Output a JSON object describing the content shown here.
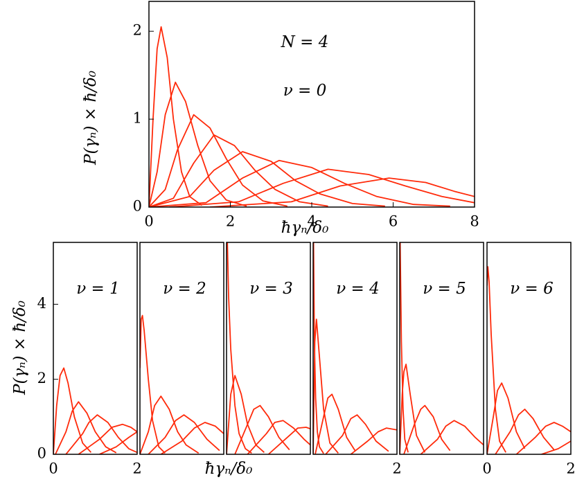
{
  "chart_data": [
    {
      "type": "line",
      "color": "#ff2a0a",
      "annotations": [
        "N = 4",
        "ν = 0"
      ],
      "xlabel": "ħγₙ/δ₀",
      "ylabel": "P(γₙ) × ħ/δ₀",
      "xlim": [
        0,
        8
      ],
      "ylim": [
        0,
        2.34
      ],
      "xticks": [
        0,
        2,
        4,
        6,
        8
      ],
      "yticks": [
        0,
        1,
        2
      ],
      "series": [
        {
          "x": [
            0,
            0.1,
            0.2,
            0.3,
            0.45,
            0.6,
            0.8,
            1.0,
            1.3
          ],
          "values": [
            0,
            1.0,
            1.8,
            2.05,
            1.7,
            1.0,
            0.4,
            0.12,
            0.02
          ]
        },
        {
          "x": [
            0,
            0.2,
            0.4,
            0.65,
            0.9,
            1.2,
            1.5,
            1.9,
            2.4
          ],
          "values": [
            0,
            0.4,
            1.05,
            1.42,
            1.2,
            0.7,
            0.3,
            0.08,
            0.01
          ]
        },
        {
          "x": [
            0,
            0.4,
            0.7,
            1.1,
            1.5,
            1.9,
            2.3,
            2.8,
            3.4
          ],
          "values": [
            0,
            0.2,
            0.65,
            1.05,
            0.9,
            0.55,
            0.25,
            0.07,
            0.01
          ]
        },
        {
          "x": [
            0,
            0.6,
            1.1,
            1.6,
            2.1,
            2.6,
            3.1,
            3.7,
            4.4
          ],
          "values": [
            0,
            0.1,
            0.5,
            0.82,
            0.7,
            0.42,
            0.2,
            0.06,
            0.01
          ]
        },
        {
          "x": [
            0,
            1.0,
            1.6,
            2.3,
            3.0,
            3.6,
            4.2,
            5.0,
            5.8
          ],
          "values": [
            0,
            0.12,
            0.42,
            0.63,
            0.52,
            0.3,
            0.15,
            0.04,
            0.01
          ]
        },
        {
          "x": [
            0,
            1.4,
            2.3,
            3.2,
            4.0,
            4.8,
            5.6,
            6.5,
            7.4
          ],
          "values": [
            0,
            0.05,
            0.33,
            0.53,
            0.45,
            0.27,
            0.12,
            0.03,
            0.01
          ]
        },
        {
          "x": [
            0.5,
            2.2,
            3.3,
            4.4,
            5.4,
            6.3,
            7.2,
            8
          ],
          "values": [
            0,
            0.06,
            0.27,
            0.43,
            0.37,
            0.24,
            0.12,
            0.05
          ]
        },
        {
          "x": [
            1.5,
            3.5,
            4.7,
            5.9,
            6.8,
            7.5,
            8
          ],
          "values": [
            0,
            0.06,
            0.24,
            0.33,
            0.28,
            0.18,
            0.12
          ]
        }
      ]
    },
    {
      "type": "line",
      "color": "#ff2a0a",
      "annotations": [
        "ν = 1"
      ],
      "ylabel": "P(γₙ) × ħ/δ₀",
      "xlim": [
        0,
        2
      ],
      "ylim": [
        0,
        5.65
      ],
      "xticks": [
        0,
        2
      ],
      "yticks": [
        0,
        2,
        4
      ],
      "series": [
        {
          "x": [
            0,
            0.08,
            0.16,
            0.25,
            0.35,
            0.5,
            0.7,
            0.9
          ],
          "values": [
            0,
            1.3,
            2.1,
            2.3,
            1.9,
            1.0,
            0.3,
            0.05
          ]
        },
        {
          "x": [
            0.05,
            0.3,
            0.45,
            0.6,
            0.8,
            1.0,
            1.25,
            1.5
          ],
          "values": [
            0,
            0.6,
            1.15,
            1.4,
            1.1,
            0.6,
            0.2,
            0.04
          ]
        },
        {
          "x": [
            0.3,
            0.7,
            0.85,
            1.05,
            1.3,
            1.55,
            1.8,
            2
          ],
          "values": [
            0,
            0.55,
            0.85,
            1.05,
            0.85,
            0.45,
            0.15,
            0.05
          ]
        },
        {
          "x": [
            0.6,
            1.1,
            1.4,
            1.65,
            1.85,
            2
          ],
          "values": [
            0,
            0.4,
            0.72,
            0.8,
            0.72,
            0.6
          ]
        },
        {
          "x": [
            1.1,
            1.5,
            1.8,
            2
          ],
          "values": [
            0,
            0.2,
            0.45,
            0.6
          ]
        }
      ]
    },
    {
      "type": "line",
      "color": "#ff2a0a",
      "annotations": [
        "ν = 2"
      ],
      "xlabel": "ħγₙ/δ₀",
      "xlim": [
        0,
        2
      ],
      "ylim": [
        0,
        5.65
      ],
      "series": [
        {
          "x": [
            0,
            0.03,
            0.06,
            0.1,
            0.2,
            0.3,
            0.45,
            0.6
          ],
          "values": [
            2.3,
            3.6,
            3.7,
            3.3,
            2.0,
            0.9,
            0.2,
            0.03
          ]
        },
        {
          "x": [
            0,
            0.2,
            0.35,
            0.5,
            0.7,
            0.9,
            1.1,
            1.4
          ],
          "values": [
            0,
            0.6,
            1.3,
            1.55,
            1.2,
            0.6,
            0.25,
            0.03
          ]
        },
        {
          "x": [
            0.2,
            0.6,
            0.85,
            1.05,
            1.3,
            1.6,
            1.9
          ],
          "values": [
            0,
            0.45,
            0.9,
            1.05,
            0.85,
            0.4,
            0.1
          ]
        },
        {
          "x": [
            0.5,
            1.0,
            1.3,
            1.55,
            1.8,
            2
          ],
          "values": [
            0,
            0.35,
            0.7,
            0.85,
            0.75,
            0.55
          ]
        }
      ]
    },
    {
      "type": "line",
      "color": "#ff2a0a",
      "annotations": [
        "ν = 3"
      ],
      "xlim": [
        0,
        2
      ],
      "ylim": [
        0,
        5.65
      ],
      "series": [
        {
          "x": [
            0.02,
            0.05,
            0.1,
            0.2,
            0.3,
            0.45,
            0.6
          ],
          "values": [
            5.65,
            4.2,
            2.8,
            1.3,
            0.55,
            0.15,
            0.03
          ]
        },
        {
          "x": [
            0,
            0.1,
            0.2,
            0.35,
            0.5,
            0.7,
            0.9
          ],
          "values": [
            0,
            1.6,
            2.1,
            1.6,
            0.8,
            0.25,
            0.05
          ]
        },
        {
          "x": [
            0.2,
            0.5,
            0.65,
            0.8,
            1.0,
            1.25,
            1.5
          ],
          "values": [
            0,
            0.8,
            1.2,
            1.3,
            1.0,
            0.45,
            0.12
          ]
        },
        {
          "x": [
            0.5,
            0.95,
            1.15,
            1.35,
            1.6,
            1.85,
            2
          ],
          "values": [
            0,
            0.55,
            0.85,
            0.9,
            0.7,
            0.4,
            0.25
          ]
        },
        {
          "x": [
            1.0,
            1.4,
            1.7,
            1.9,
            2
          ],
          "values": [
            0,
            0.4,
            0.7,
            0.72,
            0.68
          ]
        }
      ]
    },
    {
      "type": "line",
      "color": "#ff2a0a",
      "annotations": [
        "ν = 4"
      ],
      "xlim": [
        0,
        2
      ],
      "ylim": [
        0,
        5.65
      ],
      "xticks": [
        2
      ],
      "series": [
        {
          "x": [
            0.01,
            0.03,
            0.06,
            0.1,
            0.15,
            0.25
          ],
          "values": [
            5.65,
            3.0,
            1.5,
            0.6,
            0.2,
            0.02
          ]
        },
        {
          "x": [
            0,
            0.04,
            0.08,
            0.15,
            0.25,
            0.4,
            0.6
          ],
          "values": [
            0,
            3.0,
            3.6,
            2.6,
            1.2,
            0.3,
            0.03
          ]
        },
        {
          "x": [
            0.05,
            0.25,
            0.35,
            0.45,
            0.6,
            0.8,
            1.0
          ],
          "values": [
            0,
            1.0,
            1.5,
            1.6,
            1.2,
            0.45,
            0.1
          ]
        },
        {
          "x": [
            0.3,
            0.7,
            0.9,
            1.05,
            1.25,
            1.5,
            1.8
          ],
          "values": [
            0,
            0.5,
            0.95,
            1.05,
            0.8,
            0.35,
            0.08
          ]
        },
        {
          "x": [
            0.9,
            1.3,
            1.55,
            1.75,
            2
          ],
          "values": [
            0,
            0.35,
            0.6,
            0.7,
            0.65
          ]
        }
      ]
    },
    {
      "type": "line",
      "color": "#ff2a0a",
      "annotations": [
        "ν = 5"
      ],
      "xlim": [
        0,
        2
      ],
      "ylim": [
        0,
        5.65
      ],
      "series": [
        {
          "x": [
            0.01,
            0.04,
            0.08,
            0.12,
            0.2
          ],
          "values": [
            5.65,
            3.0,
            1.2,
            0.4,
            0.05
          ]
        },
        {
          "x": [
            0,
            0.06,
            0.1,
            0.15,
            0.25,
            0.4,
            0.6
          ],
          "values": [
            0,
            1.6,
            2.2,
            2.4,
            1.6,
            0.5,
            0.05
          ]
        },
        {
          "x": [
            0.1,
            0.35,
            0.5,
            0.6,
            0.8,
            1.0,
            1.2
          ],
          "values": [
            0,
            0.8,
            1.2,
            1.3,
            1.0,
            0.4,
            0.1
          ]
        },
        {
          "x": [
            0.5,
            0.9,
            1.1,
            1.3,
            1.55,
            1.8,
            2
          ],
          "values": [
            0,
            0.4,
            0.75,
            0.9,
            0.75,
            0.45,
            0.25
          ]
        }
      ]
    },
    {
      "type": "line",
      "color": "#ff2a0a",
      "annotations": [
        "ν = 6"
      ],
      "xlim": [
        0,
        2
      ],
      "ylim": [
        0,
        5.65
      ],
      "xticks": [
        0,
        2
      ],
      "series": [
        {
          "x": [
            0,
            0.02,
            0.05,
            0.1,
            0.2,
            0.3,
            0.45
          ],
          "values": [
            4.5,
            5.0,
            4.6,
            3.2,
            1.2,
            0.35,
            0.05
          ]
        },
        {
          "x": [
            0,
            0.15,
            0.25,
            0.35,
            0.5,
            0.7,
            0.9
          ],
          "values": [
            0,
            1.0,
            1.7,
            1.9,
            1.5,
            0.6,
            0.15
          ]
        },
        {
          "x": [
            0.2,
            0.55,
            0.75,
            0.9,
            1.1,
            1.35,
            1.6
          ],
          "values": [
            0,
            0.6,
            1.05,
            1.2,
            0.95,
            0.45,
            0.12
          ]
        },
        {
          "x": [
            0.7,
            1.15,
            1.4,
            1.6,
            1.8,
            2
          ],
          "values": [
            0,
            0.45,
            0.75,
            0.85,
            0.75,
            0.6
          ]
        },
        {
          "x": [
            1.3,
            1.7,
            2
          ],
          "values": [
            0,
            0.15,
            0.35
          ]
        }
      ]
    }
  ]
}
